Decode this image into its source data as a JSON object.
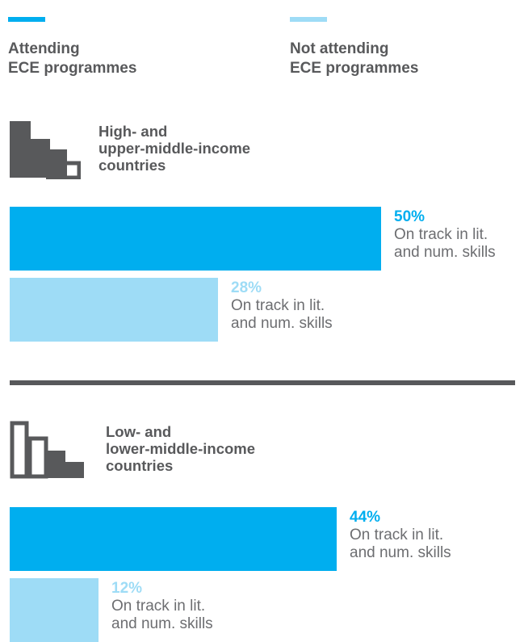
{
  "colors": {
    "attending": "#00aeef",
    "not_attending": "#9edcf6",
    "text": "#58595b",
    "icon": "#58595b"
  },
  "legend": {
    "attending": "Attending\nECE programmes",
    "not_attending": "Not attending\nECE programmes"
  },
  "chart_data": {
    "type": "bar",
    "orientation": "horizontal",
    "unit": "%",
    "groups": [
      {
        "title": "High- and\nupper-middle-income\ncountries",
        "icon": "bar-chart-icon-high-filled",
        "bars": [
          {
            "series": "Attending ECE programmes",
            "value": 50,
            "label": "50%",
            "description": "On track in lit.\nand num. skills"
          },
          {
            "series": "Not attending ECE programmes",
            "value": 28,
            "label": "28%",
            "description": "On track in lit.\nand num. skills"
          }
        ]
      },
      {
        "title": "Low- and\nlower-middle-income\ncountries",
        "icon": "bar-chart-icon-low-filled",
        "bars": [
          {
            "series": "Attending ECE programmes",
            "value": 44,
            "label": "44%",
            "description": "On track in lit.\nand num. skills"
          },
          {
            "series": "Not attending ECE programmes",
            "value": 12,
            "label": "12%",
            "description": "On track in lit.\nand num. skills"
          }
        ]
      }
    ]
  }
}
